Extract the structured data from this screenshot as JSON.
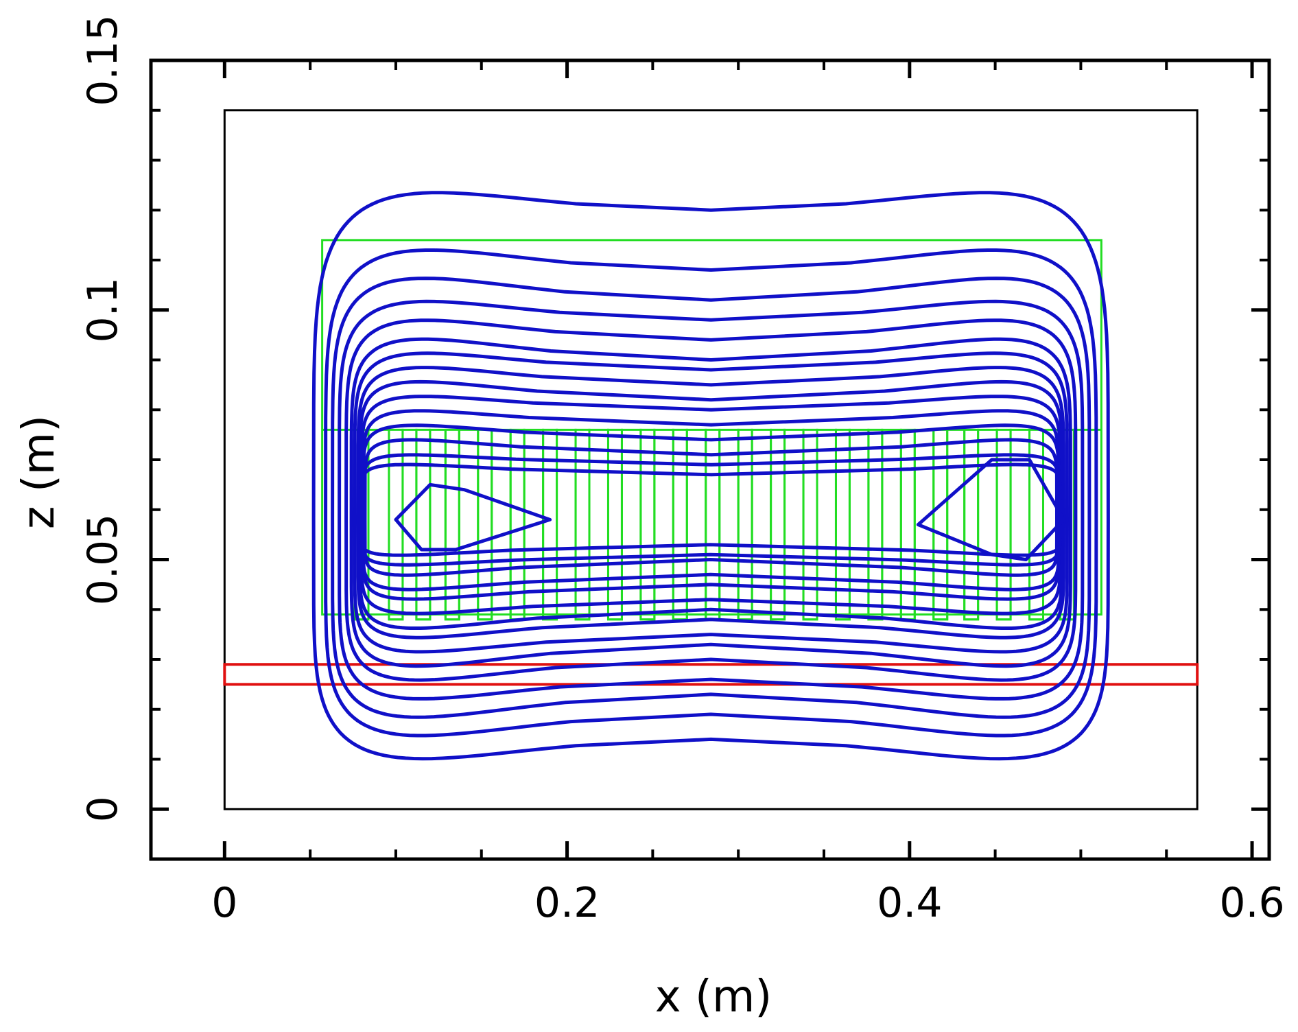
{
  "chart_data": {
    "type": "line",
    "title": "",
    "xlabel": "x (m)",
    "ylabel": "z (m)",
    "xlim": [
      -0.043,
      0.61
    ],
    "ylim": [
      -0.01,
      0.15
    ],
    "xticks": [
      0,
      0.2,
      0.4,
      0.6
    ],
    "xtick_labels": [
      "0",
      "0.2",
      "0.4",
      "0.6"
    ],
    "yticks": [
      0,
      0.05,
      0.1,
      0.15
    ],
    "ytick_labels": [
      "0",
      "0.05",
      "0.1",
      "0.15"
    ],
    "x_minor_step": 0.05,
    "y_minor_step": 0.01,
    "grid": false,
    "colors": {
      "contours": "#1010c8",
      "domain_box": "#000000",
      "green_outline": "#22dd22",
      "red_plate": "#e01010"
    },
    "domain_box": {
      "x": [
        0,
        0.568
      ],
      "z": [
        0,
        0.14
      ]
    },
    "green_outline": {
      "x": [
        0.057,
        0.512
      ],
      "z": [
        0.039,
        0.114
      ]
    },
    "green_comb": {
      "z_top": 0.076,
      "z_bottom": 0.038,
      "x_left": 0.057,
      "x_right": 0.512,
      "slot_x": [
        0.08,
        0.1,
        0.116,
        0.133,
        0.152,
        0.171,
        0.19,
        0.209,
        0.228,
        0.247,
        0.266,
        0.285,
        0.304,
        0.323,
        0.342,
        0.361,
        0.38,
        0.399,
        0.418,
        0.436,
        0.455,
        0.474,
        0.492
      ],
      "slot_width": 0.008
    },
    "red_plate": {
      "x": [
        0,
        0.568
      ],
      "z": [
        0.025,
        0.029
      ]
    },
    "contours": {
      "center_x": 0.284,
      "center_z": 0.058,
      "rings": [
        {
          "hx": 0.232,
          "hz_top": 0.068,
          "hz_bot": 0.05,
          "dip": 0.006,
          "r": 0.15
        },
        {
          "hx": 0.225,
          "hz_top": 0.056,
          "hz_bot": 0.045,
          "dip": 0.006,
          "r": 0.16
        },
        {
          "hx": 0.221,
          "hz_top": 0.05,
          "hz_bot": 0.041,
          "dip": 0.006,
          "r": 0.17
        },
        {
          "hx": 0.217,
          "hz_top": 0.045,
          "hz_bot": 0.037,
          "dip": 0.005,
          "r": 0.18
        },
        {
          "hx": 0.213,
          "hz_top": 0.041,
          "hz_bot": 0.033,
          "dip": 0.005,
          "r": 0.19
        },
        {
          "hx": 0.21,
          "hz_top": 0.037,
          "hz_bot": 0.03,
          "dip": 0.005,
          "r": 0.2
        },
        {
          "hx": 0.208,
          "hz_top": 0.034,
          "hz_bot": 0.027,
          "dip": 0.004,
          "r": 0.22
        },
        {
          "hx": 0.206,
          "hz_top": 0.031,
          "hz_bot": 0.024,
          "dip": 0.004,
          "r": 0.24
        },
        {
          "hx": 0.205,
          "hz_top": 0.028,
          "hz_bot": 0.022,
          "dip": 0.004,
          "r": 0.26
        },
        {
          "hx": 0.204,
          "hz_top": 0.025,
          "hz_bot": 0.019,
          "dip": 0.003,
          "r": 0.28
        },
        {
          "hx": 0.203,
          "hz_top": 0.022,
          "hz_bot": 0.016,
          "dip": 0.003,
          "r": 0.3
        },
        {
          "hx": 0.203,
          "hz_top": 0.019,
          "hz_bot": 0.014,
          "dip": 0.003,
          "r": 0.32
        },
        {
          "hx": 0.202,
          "hz_top": 0.016,
          "hz_bot": 0.011,
          "dip": 0.003,
          "r": 0.35
        },
        {
          "hx": 0.203,
          "hz_top": 0.013,
          "hz_bot": 0.009,
          "dip": 0.002,
          "r": 0.4
        },
        {
          "hx": 0.204,
          "hz_top": 0.011,
          "hz_bot": 0.007,
          "dip": 0.002,
          "r": 0.45
        }
      ],
      "bean_rings": [
        {
          "xs": [
            0.12,
            0.1,
            0.115,
            0.135,
            0.19,
            0.14,
            0.12
          ],
          "zs": [
            0.065,
            0.058,
            0.052,
            0.052,
            0.058,
            0.064,
            0.065
          ]
        },
        {
          "xs": [
            0.448,
            0.47,
            0.49,
            0.468,
            0.448,
            0.405,
            0.448
          ],
          "zs": [
            0.07,
            0.07,
            0.058,
            0.05,
            0.051,
            0.057,
            0.07
          ]
        }
      ]
    }
  }
}
